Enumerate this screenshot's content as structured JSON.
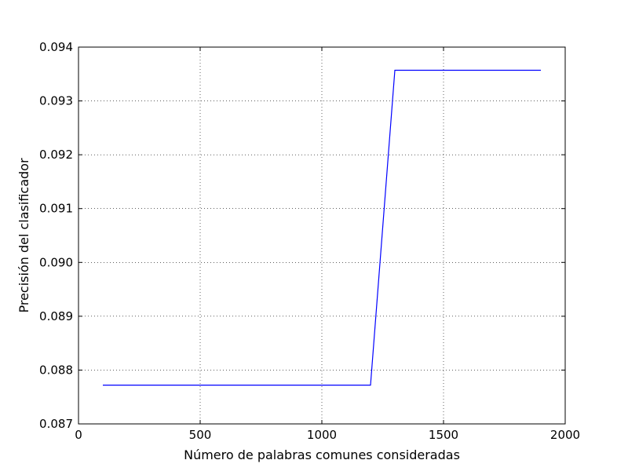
{
  "chart_data": {
    "type": "line",
    "xlabel": "Número de palabras comunes consideradas",
    "ylabel": "Precisión del clasificador",
    "xlim": [
      0,
      2000
    ],
    "ylim": [
      0.087,
      0.094
    ],
    "x_ticks": [
      "0",
      "500",
      "1000",
      "1500",
      "2000"
    ],
    "y_ticks": [
      "0.087",
      "0.088",
      "0.089",
      "0.090",
      "0.091",
      "0.092",
      "0.093",
      "0.094"
    ],
    "grid": true,
    "series": [
      {
        "color": "#0000ff",
        "x": [
          100,
          200,
          300,
          400,
          500,
          600,
          700,
          800,
          900,
          1000,
          1100,
          1200,
          1300,
          1400,
          1500,
          1600,
          1700,
          1800,
          1900
        ],
        "y": [
          0.08772,
          0.08772,
          0.08772,
          0.08772,
          0.08772,
          0.08772,
          0.08772,
          0.08772,
          0.08772,
          0.08772,
          0.08772,
          0.08772,
          0.09357,
          0.09357,
          0.09357,
          0.09357,
          0.09357,
          0.09357,
          0.09357
        ]
      }
    ]
  }
}
